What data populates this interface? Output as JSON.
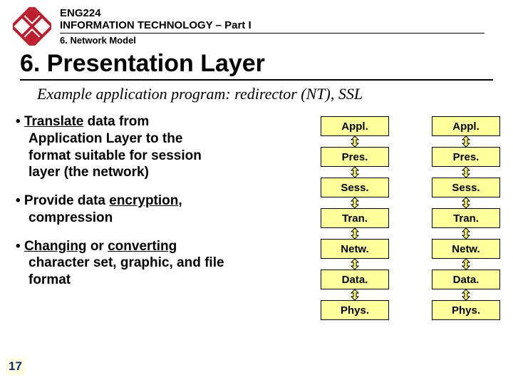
{
  "header": {
    "course_code": "ENG224",
    "course_title": "INFORMATION TECHNOLOGY – Part I",
    "chapter": "6. Network Model"
  },
  "title": "6. Presentation Layer",
  "subtitle": "Example application program: redirector (NT), SSL",
  "bullets": {
    "b1": {
      "pre": "• ",
      "u": "Translate",
      "post": " data from",
      "l2": "Application Layer to the",
      "l3": "format suitable for session",
      "l4": "layer (the network)"
    },
    "b2": {
      "pre": "• Provide data ",
      "u": "encryption",
      "post": ",",
      "l2": "compression"
    },
    "b3": {
      "pre": "• ",
      "u1": "Changing",
      "mid": " or ",
      "u2": "converting",
      "l2": "character set, graphic, and file",
      "l3": "format"
    }
  },
  "layers": [
    "Appl.",
    "Pres.",
    "Sess.",
    "Tran.",
    "Netw.",
    "Data.",
    "Phys."
  ],
  "page_number": "17",
  "colors": {
    "layer_bg": "#ffff99",
    "arrow_fill": "#ffff66",
    "logo_red": "#bd1e2d",
    "pagenum_color": "#0d2f6e"
  }
}
